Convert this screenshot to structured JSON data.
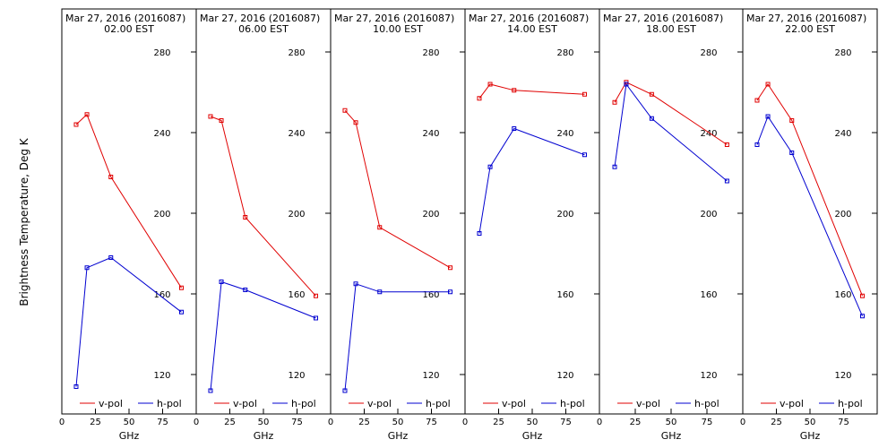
{
  "ylabel": "Brightness Temperature, Deg K",
  "legend_labels": [
    "v-pol",
    "h-pol"
  ],
  "colors": {
    "v": "#e00000",
    "h": "#0000d0",
    "frame": "#000000"
  },
  "chart_data": [
    {
      "type": "line",
      "title": "Mar 27, 2016 (2016087)",
      "subtitle": "02.00 EST",
      "xlabel": "GHz",
      "xlim": [
        0,
        100
      ],
      "ylim": [
        100,
        295
      ],
      "xticks": [
        0,
        25,
        50,
        75
      ],
      "yticks": [
        120,
        160,
        200,
        240,
        280
      ],
      "x": [
        10.65,
        18.7,
        36.5,
        89
      ],
      "series": [
        {
          "name": "v-pol",
          "values": [
            244,
            249,
            218,
            163
          ]
        },
        {
          "name": "h-pol",
          "values": [
            114,
            173,
            178,
            151
          ]
        }
      ]
    },
    {
      "type": "line",
      "title": "Mar 27, 2016 (2016087)",
      "subtitle": "06.00 EST",
      "xlabel": "GHz",
      "xlim": [
        0,
        100
      ],
      "ylim": [
        100,
        295
      ],
      "xticks": [
        0,
        25,
        50,
        75
      ],
      "yticks": [
        120,
        160,
        200,
        240,
        280
      ],
      "x": [
        10.65,
        18.7,
        36.5,
        89
      ],
      "series": [
        {
          "name": "v-pol",
          "values": [
            248,
            246,
            198,
            159
          ]
        },
        {
          "name": "h-pol",
          "values": [
            112,
            166,
            162,
            148
          ]
        }
      ]
    },
    {
      "type": "line",
      "title": "Mar 27, 2016 (2016087)",
      "subtitle": "10.00 EST",
      "xlabel": "GHz",
      "xlim": [
        0,
        100
      ],
      "ylim": [
        100,
        295
      ],
      "xticks": [
        0,
        25,
        50,
        75
      ],
      "yticks": [
        120,
        160,
        200,
        240,
        280
      ],
      "x": [
        10.65,
        18.7,
        36.5,
        89
      ],
      "series": [
        {
          "name": "v-pol",
          "values": [
            251,
            245,
            193,
            173
          ]
        },
        {
          "name": "h-pol",
          "values": [
            112,
            165,
            161,
            161
          ]
        }
      ]
    },
    {
      "type": "line",
      "title": "Mar 27, 2016 (2016087)",
      "subtitle": "14.00 EST",
      "xlabel": "GHz",
      "xlim": [
        0,
        100
      ],
      "ylim": [
        100,
        295
      ],
      "xticks": [
        0,
        25,
        50,
        75
      ],
      "yticks": [
        120,
        160,
        200,
        240,
        280
      ],
      "x": [
        10.65,
        18.7,
        36.5,
        89
      ],
      "series": [
        {
          "name": "v-pol",
          "values": [
            257,
            264,
            261,
            259
          ]
        },
        {
          "name": "h-pol",
          "values": [
            190,
            223,
            242,
            229
          ]
        }
      ]
    },
    {
      "type": "line",
      "title": "Mar 27, 2016 (2016087)",
      "subtitle": "18.00 EST",
      "xlabel": "GHz",
      "xlim": [
        0,
        100
      ],
      "ylim": [
        100,
        295
      ],
      "xticks": [
        0,
        25,
        50,
        75
      ],
      "yticks": [
        120,
        160,
        200,
        240,
        280
      ],
      "x": [
        10.65,
        18.7,
        36.5,
        89
      ],
      "series": [
        {
          "name": "v-pol",
          "values": [
            255,
            265,
            259,
            234
          ]
        },
        {
          "name": "h-pol",
          "values": [
            223,
            264,
            247,
            216
          ]
        }
      ]
    },
    {
      "type": "line",
      "title": "Mar 27, 2016 (2016087)",
      "subtitle": "22.00 EST",
      "xlabel": "GHz",
      "xlim": [
        0,
        100
      ],
      "ylim": [
        100,
        295
      ],
      "xticks": [
        0,
        25,
        50,
        75
      ],
      "yticks": [
        120,
        160,
        200,
        240,
        280
      ],
      "x": [
        10.65,
        18.7,
        36.5,
        89
      ],
      "series": [
        {
          "name": "v-pol",
          "values": [
            256,
            264,
            246,
            159
          ]
        },
        {
          "name": "h-pol",
          "values": [
            234,
            248,
            230,
            149
          ]
        }
      ]
    }
  ]
}
